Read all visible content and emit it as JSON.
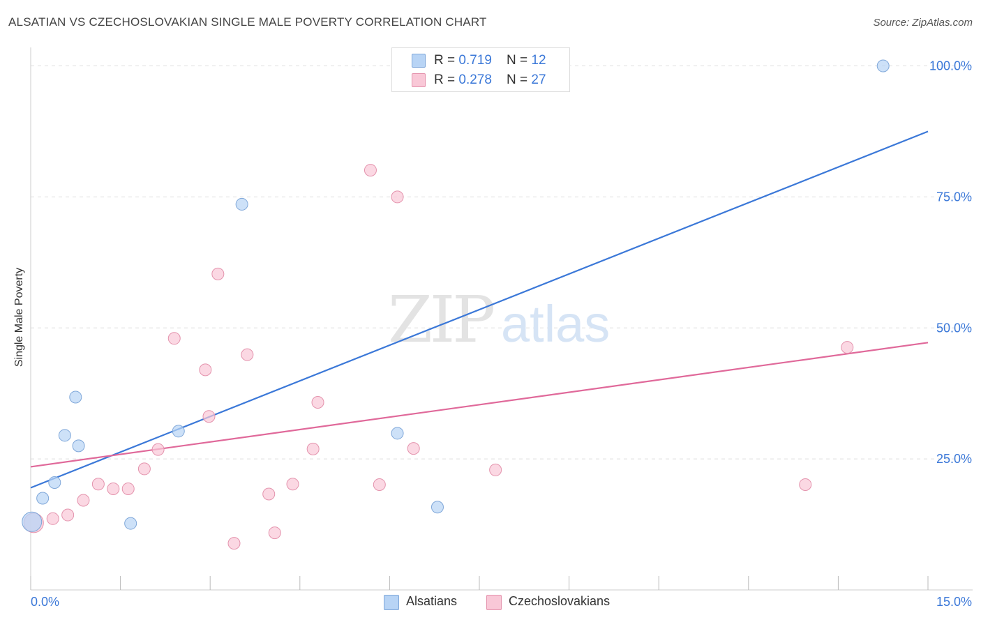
{
  "header": {
    "title": "ALSATIAN VS CZECHOSLOVAKIAN SINGLE MALE POVERTY CORRELATION CHART",
    "source": "Source: ZipAtlas.com"
  },
  "watermark": {
    "zip": "ZIP",
    "atlas": "atlas"
  },
  "legend": {
    "rows": [
      {
        "r_label": "R = ",
        "r_value": "0.719",
        "n_label": "N = ",
        "n_value": "12",
        "color": "#b8d4f5",
        "border": "#7fa7d9"
      },
      {
        "r_label": "R = ",
        "r_value": "0.278",
        "n_label": "N = ",
        "n_value": "27",
        "color": "#f9c8d7",
        "border": "#e493ad"
      }
    ]
  },
  "bottom_legend": [
    {
      "label": "Alsatians",
      "color": "#b8d4f5",
      "border": "#7fa7d9"
    },
    {
      "label": "Czechoslovakians",
      "color": "#f9c8d7",
      "border": "#e493ad"
    }
  ],
  "chart_data": {
    "type": "scatter",
    "title": "ALSATIAN VS CZECHOSLOVAKIAN SINGLE MALE POVERTY CORRELATION CHART",
    "xlabel": "",
    "ylabel": "Single Male Poverty",
    "xlim": [
      0,
      15
    ],
    "ylim": [
      0,
      103
    ],
    "x_tick_labels": [
      "0.0%",
      "15.0%"
    ],
    "y_tick_labels": [
      "25.0%",
      "50.0%",
      "75.0%",
      "100.0%"
    ],
    "y_ticks": [
      25,
      50,
      75,
      100
    ],
    "grid": true,
    "series": [
      {
        "name": "Alsatians",
        "color": "#3b78d8",
        "fill": "#b8d4f5",
        "points": [
          {
            "x": 0.02,
            "y": 13.0,
            "big": true
          },
          {
            "x": 0.2,
            "y": 17.5
          },
          {
            "x": 0.4,
            "y": 20.5
          },
          {
            "x": 0.57,
            "y": 29.5
          },
          {
            "x": 0.75,
            "y": 36.8
          },
          {
            "x": 0.8,
            "y": 27.5
          },
          {
            "x": 1.67,
            "y": 12.7
          },
          {
            "x": 2.47,
            "y": 30.3
          },
          {
            "x": 3.53,
            "y": 73.6
          },
          {
            "x": 6.13,
            "y": 29.9
          },
          {
            "x": 6.8,
            "y": 15.8
          },
          {
            "x": 14.25,
            "y": 100.0
          }
        ],
        "trend": {
          "x": [
            0,
            15
          ],
          "y": [
            19.5,
            87.5
          ]
        }
      },
      {
        "name": "Czechoslovakians",
        "color": "#e0699a",
        "fill": "#f9c8d7",
        "points": [
          {
            "x": 0.05,
            "y": 12.8,
            "big": true
          },
          {
            "x": 0.37,
            "y": 13.6
          },
          {
            "x": 0.62,
            "y": 14.3
          },
          {
            "x": 0.88,
            "y": 17.1
          },
          {
            "x": 1.13,
            "y": 20.2
          },
          {
            "x": 1.38,
            "y": 19.3
          },
          {
            "x": 1.63,
            "y": 19.3
          },
          {
            "x": 1.9,
            "y": 23.1
          },
          {
            "x": 2.13,
            "y": 26.8
          },
          {
            "x": 2.4,
            "y": 48.0
          },
          {
            "x": 2.92,
            "y": 42.0
          },
          {
            "x": 2.98,
            "y": 33.1
          },
          {
            "x": 3.13,
            "y": 60.3
          },
          {
            "x": 3.4,
            "y": 8.9
          },
          {
            "x": 3.62,
            "y": 44.9
          },
          {
            "x": 3.98,
            "y": 18.3
          },
          {
            "x": 4.08,
            "y": 10.9
          },
          {
            "x": 4.38,
            "y": 20.2
          },
          {
            "x": 4.72,
            "y": 26.9
          },
          {
            "x": 4.8,
            "y": 35.8
          },
          {
            "x": 5.68,
            "y": 80.1
          },
          {
            "x": 5.83,
            "y": 20.1
          },
          {
            "x": 6.13,
            "y": 75.0
          },
          {
            "x": 6.4,
            "y": 27.0
          },
          {
            "x": 7.77,
            "y": 22.9
          },
          {
            "x": 12.95,
            "y": 20.1
          },
          {
            "x": 13.65,
            "y": 46.3
          }
        ],
        "trend": {
          "x": [
            0,
            15
          ],
          "y": [
            23.5,
            47.2
          ]
        }
      }
    ]
  }
}
